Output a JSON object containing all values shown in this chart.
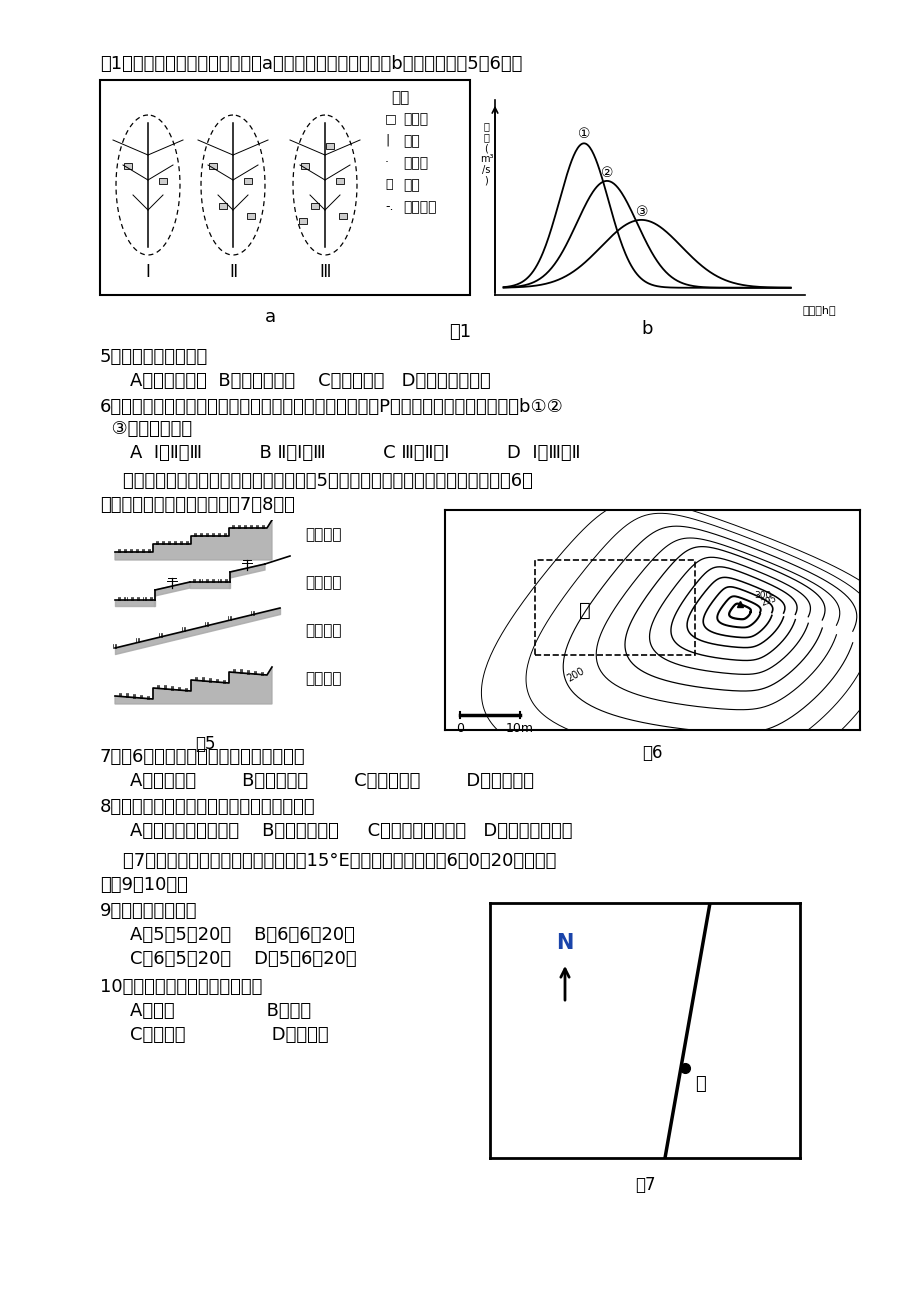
{
  "page_bg": "#ffffff",
  "title_intro": "图1示意某流域开发的三个阶段（a）和三条流量变化曲线（b）。读图回答5～6题。",
  "fig1_label": "图1",
  "q5": "5．该流域开发过程中",
  "q5_opts_a": "    A．降水量增加  B．蒸发量增加    C．下渗减少   D．地表径流减少",
  "q6": "6．假设该流域三个阶段都经历了相同的一次暴雨过程，在P处形成的流量变化过程为图b①②",
  "q6b": "  ③分别对应的是",
  "q6_opts": "    A  Ⅰ、Ⅱ、Ⅲ          B Ⅱ、Ⅰ、Ⅲ          C Ⅲ、Ⅱ、Ⅰ          D  Ⅰ、Ⅲ、Ⅱ",
  "para1": "    梯田是因地制宜发展农业生产的典范。图5是四种不同类型梯田的剖面示意图，图6是",
  "para2": "某地等高线地形图。读图回答7～8题。",
  "q7": "7．图6中甲区地形适合修筑的梯田类型是",
  "q7_opts": "    A．水平梯田        B．坡式梯田        C．隔坡梯田        D．反坡梯田",
  "q8": "8．在黄土高原缓坡上修筑反坡梯田的优点是",
  "q8_opts": "    A．保水保土效果更好    B．修筑难度小     C．利于机械化耕作   D．便于灌溉施肥",
  "para3": "    图7中的斜线示意晨昏线。甲地经度为15°E，假定西五区区时为6日0时20分。据此",
  "para4": "完成9～10题。",
  "q9": "9．图中甲地时间为",
  "q9_opts_a": "    A．5日5时20分    B．6日6时20分",
  "q9_opts_c": "    C．6日5时20分    D．5日6时20分",
  "q10": "10．当日下列城市白昼最长的是",
  "q10_opts_a": "    A．悉尼                B．上海",
  "q10_opts_c": "    C．雅加达               D．莫斯科",
  "legend_items": [
    "居民点",
    "植被",
    "水文站",
    "河流",
    "流域界线"
  ],
  "terrace_labels": [
    "水平梯田",
    "隔坡梯田",
    "坡式梯田",
    "反坡梯田"
  ]
}
